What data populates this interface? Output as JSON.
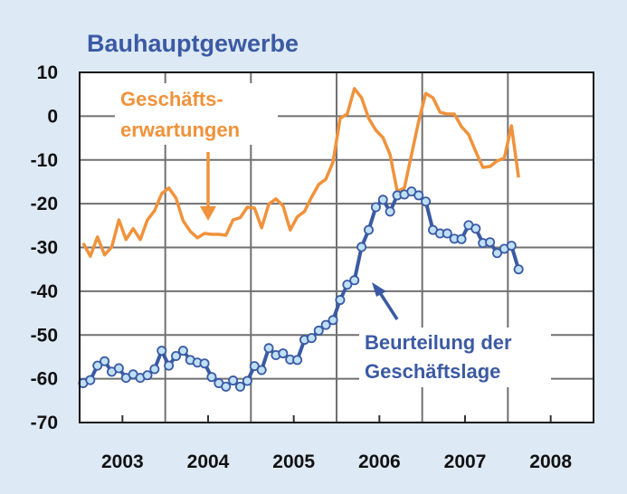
{
  "chart_data": {
    "type": "line",
    "title": "Bauhauptgewerbe",
    "xlabel": "",
    "ylabel": "",
    "ylim": [
      -70,
      10
    ],
    "yticks": [
      "10",
      "0",
      "-10",
      "-20",
      "-30",
      "-40",
      "-50",
      "-60",
      "-70"
    ],
    "xlim": [
      "2003-01",
      "2008-12"
    ],
    "xtick_labels": [
      "2003",
      "2004",
      "2005",
      "2006",
      "2007",
      "2008"
    ],
    "grid": true,
    "x": [
      "2003-01",
      "2003-02",
      "2003-03",
      "2003-04",
      "2003-05",
      "2003-06",
      "2003-07",
      "2003-08",
      "2003-09",
      "2003-10",
      "2003-11",
      "2003-12",
      "2004-01",
      "2004-02",
      "2004-03",
      "2004-04",
      "2004-05",
      "2004-06",
      "2004-07",
      "2004-08",
      "2004-09",
      "2004-10",
      "2004-11",
      "2004-12",
      "2005-01",
      "2005-02",
      "2005-03",
      "2005-04",
      "2005-05",
      "2005-06",
      "2005-07",
      "2005-08",
      "2005-09",
      "2005-10",
      "2005-11",
      "2005-12",
      "2006-01",
      "2006-02",
      "2006-03",
      "2006-04",
      "2006-05",
      "2006-06",
      "2006-07",
      "2006-08",
      "2006-09",
      "2006-10",
      "2006-11",
      "2006-12",
      "2007-01",
      "2007-02",
      "2007-03",
      "2007-04",
      "2007-05",
      "2007-06",
      "2007-07",
      "2007-08",
      "2007-09",
      "2007-10",
      "2007-11",
      "2007-12",
      "2008-01",
      "2008-02"
    ],
    "series": [
      {
        "name": "Geschäfts-erwartungen",
        "color": "#f0923b",
        "markers": false,
        "values": [
          -29,
          -32,
          -27.6,
          -31.7,
          -29.9,
          -23.7,
          -28.2,
          -25.7,
          -28.2,
          -23.7,
          -21.6,
          -17.7,
          -16.4,
          -18.7,
          -23.9,
          -26.3,
          -27.8,
          -26.8,
          -27,
          -27,
          -27.2,
          -23.7,
          -23.2,
          -20.8,
          -21,
          -25.5,
          -20.1,
          -18.9,
          -20.5,
          -26,
          -23,
          -21.8,
          -18.5,
          -15.6,
          -14.4,
          -10.5,
          -0.5,
          0.5,
          6.3,
          4.2,
          -0.5,
          -3.2,
          -4.9,
          -8.8,
          -17.2,
          -16.4,
          -8.8,
          -1.2,
          5.2,
          4.2,
          0.9,
          0.5,
          0.5,
          -2.4,
          -4.2,
          -8.1,
          -11.7,
          -11.5,
          -10.2,
          -9.6,
          -2.2,
          -14
        ]
      },
      {
        "name": "Beurteilung der Geschäftslage",
        "color": "#3b5aa3",
        "marker_fill": "#bfe0f7",
        "markers": true,
        "values": [
          -61,
          -60.3,
          -57,
          -56,
          -58.4,
          -57.6,
          -59.8,
          -59,
          -59.8,
          -59.2,
          -57.8,
          -53.6,
          -57,
          -54.8,
          -53.6,
          -55.7,
          -56.3,
          -56.5,
          -59.6,
          -61,
          -61.8,
          -60.4,
          -61.8,
          -60.5,
          -57.1,
          -58,
          -53,
          -54.6,
          -54.2,
          -55.6,
          -55.7,
          -51.1,
          -50.7,
          -49,
          -47.7,
          -46.6,
          -42,
          -38.5,
          -37.5,
          -29.9,
          -26,
          -20.8,
          -19.1,
          -21.8,
          -18.1,
          -17.9,
          -17.2,
          -18.1,
          -19.5,
          -26,
          -26.8,
          -26.8,
          -28,
          -28.1,
          -24.9,
          -25.7,
          -29,
          -28.8,
          -31.3,
          -30.3,
          -29.6,
          -35
        ]
      }
    ],
    "annotations": [
      {
        "lines": [
          "Geschäfts-",
          "erwartungen"
        ],
        "series": "Geschäfts-erwartungen",
        "arrow": "down"
      },
      {
        "lines": [
          "Beurteilung der",
          "Geschäftslage"
        ],
        "series": "Beurteilung der Geschäftslage",
        "arrow": "up-left"
      }
    ],
    "background": "#dde9f5"
  }
}
